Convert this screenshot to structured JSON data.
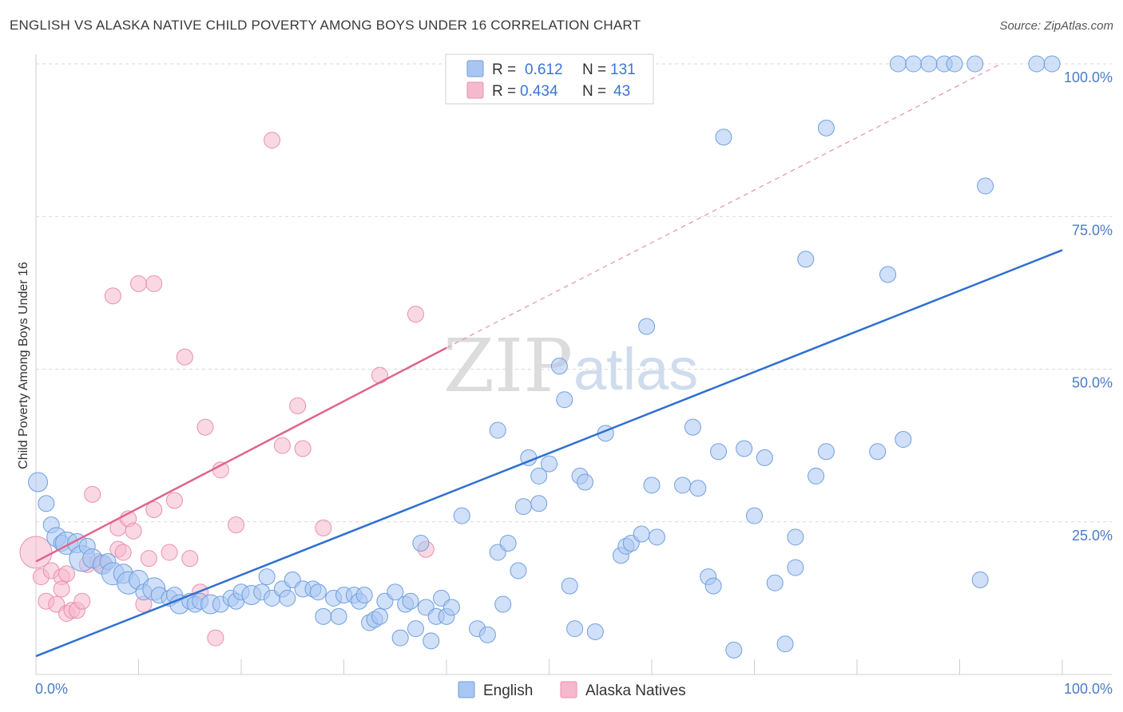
{
  "header": {
    "title": "ENGLISH VS ALASKA NATIVE CHILD POVERTY AMONG BOYS UNDER 16 CORRELATION CHART",
    "source": "Source: ZipAtlas.com"
  },
  "watermark": {
    "zip": "ZIP",
    "atlas": "atlas"
  },
  "colors": {
    "english_fill": "#a9c6f2",
    "english_stroke": "#6f9fe0",
    "english_line": "#2f6fd0",
    "alaska_fill": "#f6b8cc",
    "alaska_stroke": "#ea8fae",
    "alaska_line": "#e0648f",
    "grid": "#d9d9d9",
    "axis_text": "#4a7cc9"
  },
  "chart_data": {
    "type": "scatter",
    "title": "ENGLISH VS ALASKA NATIVE CHILD POVERTY AMONG BOYS UNDER 16 CORRELATION CHART",
    "xlabel": "",
    "ylabel": "Child Poverty Among Boys Under 16",
    "xlim": [
      0,
      100
    ],
    "ylim": [
      0,
      100
    ],
    "x_tick_labels": [
      "0.0%",
      "100.0%"
    ],
    "y_ticks": [
      {
        "value": 25,
        "label": "25.0%"
      },
      {
        "value": 50,
        "label": "50.0%"
      },
      {
        "value": 75,
        "label": "75.0%"
      },
      {
        "value": 100,
        "label": "100.0%"
      }
    ],
    "legend": {
      "position": "top-center",
      "r_label": "R =",
      "n_label": "N =",
      "entries": [
        {
          "series": "English",
          "r": "0.612",
          "n": "131"
        },
        {
          "series": "Alaska Natives",
          "r": "0.434",
          "n": "43"
        }
      ]
    },
    "series": [
      {
        "name": "English",
        "trend": {
          "x": [
            0,
            100
          ],
          "y": [
            3,
            69.5
          ]
        },
        "points": [
          [
            0.2,
            31.5,
            12
          ],
          [
            1,
            28,
            10
          ],
          [
            1.5,
            24.5,
            10
          ],
          [
            2,
            22.5,
            12
          ],
          [
            2.5,
            21.5,
            10
          ],
          [
            3,
            21.5,
            14
          ],
          [
            4,
            21.5,
            12
          ],
          [
            4.5,
            19,
            16
          ],
          [
            5,
            21,
            10
          ],
          [
            5.5,
            19,
            12
          ],
          [
            6.5,
            18,
            12
          ],
          [
            7,
            18.5,
            10
          ],
          [
            7.5,
            16.5,
            14
          ],
          [
            8.5,
            16.5,
            12
          ],
          [
            9,
            15,
            14
          ],
          [
            10,
            15.5,
            12
          ],
          [
            10.5,
            13.5,
            10
          ],
          [
            11.5,
            14,
            14
          ],
          [
            12,
            13,
            10
          ],
          [
            13,
            12.5,
            10
          ],
          [
            13.5,
            13,
            10
          ],
          [
            14,
            11.5,
            12
          ],
          [
            15,
            12,
            10
          ],
          [
            15.5,
            11.5,
            10
          ],
          [
            16,
            12,
            10
          ],
          [
            17,
            11.5,
            12
          ],
          [
            18,
            11.5,
            10
          ],
          [
            19,
            12.5,
            10
          ],
          [
            19.5,
            12,
            10
          ],
          [
            20,
            13.5,
            10
          ],
          [
            21,
            13,
            12
          ],
          [
            22,
            13.5,
            10
          ],
          [
            22.5,
            16,
            10
          ],
          [
            23,
            12.5,
            10
          ],
          [
            24,
            14,
            10
          ],
          [
            24.5,
            12.5,
            10
          ],
          [
            25,
            15.5,
            10
          ],
          [
            26,
            14,
            10
          ],
          [
            27,
            14,
            10
          ],
          [
            27.5,
            13.5,
            10
          ],
          [
            28,
            9.5,
            10
          ],
          [
            29,
            12.5,
            10
          ],
          [
            29.5,
            9.5,
            10
          ],
          [
            30,
            13,
            10
          ],
          [
            31,
            13,
            10
          ],
          [
            31.5,
            12,
            10
          ],
          [
            32,
            13,
            10
          ],
          [
            32.5,
            8.5,
            10
          ],
          [
            33,
            9,
            10
          ],
          [
            33.5,
            9.5,
            10
          ],
          [
            34,
            12,
            10
          ],
          [
            35,
            13.5,
            10
          ],
          [
            35.5,
            6,
            10
          ],
          [
            36,
            11.5,
            10
          ],
          [
            36.5,
            12,
            10
          ],
          [
            37,
            7.5,
            10
          ],
          [
            37.5,
            21.5,
            10
          ],
          [
            38,
            11,
            10
          ],
          [
            38.5,
            5.5,
            10
          ],
          [
            39,
            9.5,
            10
          ],
          [
            39.5,
            12.5,
            10
          ],
          [
            40,
            9.5,
            10
          ],
          [
            40.5,
            11,
            10
          ],
          [
            41.5,
            26,
            10
          ],
          [
            43,
            7.5,
            10
          ],
          [
            44,
            6.5,
            10
          ],
          [
            45,
            20,
            10
          ],
          [
            45,
            40,
            10
          ],
          [
            45.5,
            11.5,
            10
          ],
          [
            46,
            21.5,
            10
          ],
          [
            47,
            17,
            10
          ],
          [
            47.5,
            27.5,
            10
          ],
          [
            48,
            35.5,
            10
          ],
          [
            49,
            28,
            10
          ],
          [
            49,
            32.5,
            10
          ],
          [
            50,
            34.5,
            10
          ],
          [
            51,
            50.5,
            10
          ],
          [
            51.5,
            45,
            10
          ],
          [
            52,
            14.5,
            10
          ],
          [
            52.5,
            7.5,
            10
          ],
          [
            53,
            32.5,
            10
          ],
          [
            53.5,
            31.5,
            10
          ],
          [
            54.5,
            7,
            10
          ],
          [
            55.5,
            39.5,
            10
          ],
          [
            57,
            19.5,
            10
          ],
          [
            57.5,
            21,
            10
          ],
          [
            58,
            21.5,
            10
          ],
          [
            59,
            23,
            10
          ],
          [
            59.5,
            57,
            10
          ],
          [
            60,
            31,
            10
          ],
          [
            60.5,
            22.5,
            10
          ],
          [
            63,
            31,
            10
          ],
          [
            64,
            40.5,
            10
          ],
          [
            64.5,
            30.5,
            10
          ],
          [
            65.5,
            16,
            10
          ],
          [
            66,
            14.5,
            10
          ],
          [
            66.5,
            36.5,
            10
          ],
          [
            67,
            88,
            10
          ],
          [
            68,
            4,
            10
          ],
          [
            69,
            37,
            10
          ],
          [
            70,
            26,
            10
          ],
          [
            71,
            35.5,
            10
          ],
          [
            72,
            15,
            10
          ],
          [
            73,
            5,
            10
          ],
          [
            74,
            17.5,
            10
          ],
          [
            74,
            22.5,
            10
          ],
          [
            75,
            68,
            10
          ],
          [
            76,
            32.5,
            10
          ],
          [
            77,
            36.5,
            10
          ],
          [
            77,
            89.5,
            10
          ],
          [
            82,
            36.5,
            10
          ],
          [
            83,
            65.5,
            10
          ],
          [
            84,
            100,
            10
          ],
          [
            84.5,
            38.5,
            10
          ],
          [
            85.5,
            100,
            10
          ],
          [
            87,
            100,
            10
          ],
          [
            88.5,
            100,
            10
          ],
          [
            89.5,
            100,
            10
          ],
          [
            91.5,
            100,
            10
          ],
          [
            92,
            15.5,
            10
          ],
          [
            92.5,
            80,
            10
          ],
          [
            97.5,
            100,
            10
          ],
          [
            99,
            100,
            10
          ]
        ]
      },
      {
        "name": "Alaska Natives",
        "trend": {
          "x": [
            0,
            40
          ],
          "y": [
            18.5,
            53.5
          ],
          "extended": {
            "x": [
              40,
              94
            ],
            "y": [
              53.5,
              100
            ]
          }
        },
        "points": [
          [
            0,
            20,
            20
          ],
          [
            0.5,
            16,
            10
          ],
          [
            1,
            12,
            10
          ],
          [
            1.5,
            17,
            10
          ],
          [
            2,
            11.5,
            10
          ],
          [
            2.5,
            16,
            10
          ],
          [
            2.5,
            14,
            10
          ],
          [
            3,
            16.5,
            10
          ],
          [
            3,
            10,
            10
          ],
          [
            3.5,
            10.5,
            10
          ],
          [
            4,
            10.5,
            10
          ],
          [
            4.5,
            12,
            10
          ],
          [
            5,
            18,
            10
          ],
          [
            5.5,
            29.5,
            10
          ],
          [
            6,
            18.5,
            10
          ],
          [
            6.5,
            18,
            10
          ],
          [
            7.5,
            62,
            10
          ],
          [
            8,
            24,
            10
          ],
          [
            8,
            20.5,
            10
          ],
          [
            8.5,
            20,
            10
          ],
          [
            9,
            25.5,
            10
          ],
          [
            9.5,
            23.5,
            10
          ],
          [
            10,
            64,
            10
          ],
          [
            10.5,
            11.5,
            10
          ],
          [
            11,
            19,
            10
          ],
          [
            11.5,
            27,
            10
          ],
          [
            11.5,
            64,
            10
          ],
          [
            13,
            20,
            10
          ],
          [
            13.5,
            28.5,
            10
          ],
          [
            14.5,
            52,
            10
          ],
          [
            15,
            19,
            10
          ],
          [
            16,
            13.5,
            10
          ],
          [
            16.5,
            40.5,
            10
          ],
          [
            17.5,
            6,
            10
          ],
          [
            18,
            33.5,
            10
          ],
          [
            19.5,
            24.5,
            10
          ],
          [
            23,
            87.5,
            10
          ],
          [
            24,
            37.5,
            10
          ],
          [
            25.5,
            44,
            10
          ],
          [
            26,
            37,
            10
          ],
          [
            28,
            24,
            10
          ],
          [
            33.5,
            49,
            10
          ],
          [
            37,
            59,
            10
          ],
          [
            38,
            20.5,
            10
          ]
        ]
      }
    ]
  }
}
